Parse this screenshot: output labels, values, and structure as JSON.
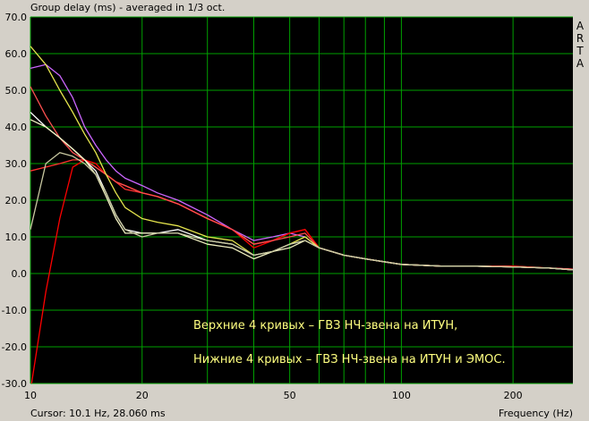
{
  "chart_data": {
    "type": "line",
    "title": "Group delay (ms) - averaged in 1/3 oct.",
    "xlabel": "Frequency (Hz)",
    "ylabel": "",
    "x_scale": "log",
    "xlim": [
      10,
      290
    ],
    "ylim": [
      -30,
      70
    ],
    "y_ticks": [
      "70.0",
      "60.0",
      "50.0",
      "40.0",
      "30.0",
      "20.0",
      "10.0",
      "0.0",
      "-10.0",
      "-20.0",
      "-30.0"
    ],
    "x_ticks": [
      {
        "v": 10,
        "label": "10"
      },
      {
        "v": 20,
        "label": "20"
      },
      {
        "v": 50,
        "label": "50"
      },
      {
        "v": 100,
        "label": "100"
      },
      {
        "v": 200,
        "label": "200"
      }
    ],
    "grid": true,
    "annotations": [
      "Верхние 4 кривых – ГВЗ НЧ-звена на ИТУН,",
      "Нижние 4 кривых – ГВЗ НЧ-звена на ИТУН и ЭМОС."
    ],
    "series": [
      {
        "color": "#cc66ff",
        "points": [
          [
            10,
            56
          ],
          [
            11,
            57
          ],
          [
            12,
            54
          ],
          [
            13,
            48
          ],
          [
            14,
            40
          ],
          [
            15,
            35
          ],
          [
            16,
            31
          ],
          [
            17,
            28
          ],
          [
            18,
            26
          ],
          [
            20,
            24
          ],
          [
            22,
            22
          ],
          [
            25,
            20
          ],
          [
            30,
            16
          ],
          [
            35,
            12
          ],
          [
            40,
            9
          ],
          [
            45,
            10
          ],
          [
            50,
            11
          ],
          [
            55,
            10
          ],
          [
            60,
            7
          ],
          [
            70,
            5
          ],
          [
            80,
            4
          ],
          [
            100,
            2.5
          ],
          [
            130,
            2
          ],
          [
            160,
            2
          ],
          [
            200,
            1.8
          ],
          [
            250,
            1.5
          ],
          [
            290,
            1.2
          ]
        ]
      },
      {
        "color": "#ff3030",
        "points": [
          [
            10,
            28
          ],
          [
            12,
            30
          ],
          [
            13,
            31
          ],
          [
            14,
            31
          ],
          [
            15,
            29
          ],
          [
            16,
            27
          ],
          [
            17,
            25
          ],
          [
            18,
            23
          ],
          [
            20,
            22
          ],
          [
            22,
            21
          ],
          [
            25,
            19
          ],
          [
            30,
            15
          ],
          [
            35,
            12
          ],
          [
            40,
            8
          ],
          [
            45,
            9
          ],
          [
            50,
            11
          ],
          [
            55,
            12
          ],
          [
            60,
            7
          ],
          [
            70,
            5
          ],
          [
            80,
            4
          ],
          [
            100,
            2.5
          ],
          [
            130,
            2
          ],
          [
            160,
            2
          ],
          [
            200,
            2
          ],
          [
            250,
            1.5
          ],
          [
            290,
            1.2
          ]
        ]
      },
      {
        "color": "#ff0000",
        "points": [
          [
            10,
            -32
          ],
          [
            11,
            -5
          ],
          [
            12,
            15
          ],
          [
            13,
            29
          ],
          [
            14,
            31
          ],
          [
            15,
            30
          ],
          [
            16,
            27
          ],
          [
            17,
            25
          ],
          [
            18,
            24
          ],
          [
            20,
            22
          ],
          [
            22,
            21
          ],
          [
            25,
            19
          ],
          [
            30,
            15
          ],
          [
            35,
            12
          ],
          [
            40,
            7
          ],
          [
            45,
            9
          ],
          [
            50,
            11
          ],
          [
            55,
            12
          ],
          [
            60,
            7
          ],
          [
            70,
            5
          ],
          [
            80,
            4
          ],
          [
            100,
            2.5
          ],
          [
            130,
            2
          ],
          [
            160,
            2
          ],
          [
            200,
            2
          ],
          [
            250,
            1.5
          ],
          [
            290,
            1
          ]
        ]
      },
      {
        "color": "#ff5050",
        "points": [
          [
            10,
            51
          ],
          [
            11,
            43
          ],
          [
            12,
            37
          ],
          [
            13,
            33
          ],
          [
            14,
            31
          ],
          [
            15,
            29
          ],
          [
            16,
            27
          ],
          [
            17,
            25
          ],
          [
            18,
            24
          ],
          [
            20,
            22
          ],
          [
            22,
            21
          ],
          [
            25,
            19
          ],
          [
            30,
            15
          ],
          [
            35,
            12
          ],
          [
            40,
            8
          ],
          [
            45,
            9
          ],
          [
            50,
            10
          ],
          [
            55,
            11
          ],
          [
            60,
            7
          ],
          [
            70,
            5
          ],
          [
            80,
            4
          ],
          [
            100,
            2.5
          ],
          [
            130,
            2
          ],
          [
            160,
            2
          ],
          [
            200,
            1.8
          ],
          [
            250,
            1.5
          ],
          [
            290,
            1.2
          ]
        ]
      },
      {
        "color": "#e6e64d",
        "points": [
          [
            10,
            62
          ],
          [
            11,
            57
          ],
          [
            12,
            50
          ],
          [
            13,
            44
          ],
          [
            14,
            38
          ],
          [
            15,
            33
          ],
          [
            16,
            27
          ],
          [
            17,
            22
          ],
          [
            18,
            18
          ],
          [
            20,
            15
          ],
          [
            22,
            14
          ],
          [
            25,
            13
          ],
          [
            30,
            10
          ],
          [
            35,
            9
          ],
          [
            40,
            5
          ],
          [
            45,
            6
          ],
          [
            50,
            8
          ],
          [
            55,
            10
          ],
          [
            60,
            7
          ],
          [
            70,
            5
          ],
          [
            80,
            4
          ],
          [
            100,
            2.5
          ],
          [
            130,
            2
          ],
          [
            160,
            2
          ],
          [
            200,
            1.8
          ],
          [
            250,
            1.5
          ],
          [
            290,
            1
          ]
        ]
      },
      {
        "color": "#ffffff",
        "points": [
          [
            10,
            44
          ],
          [
            11,
            40
          ],
          [
            12,
            37
          ],
          [
            13,
            34
          ],
          [
            14,
            31
          ],
          [
            15,
            28
          ],
          [
            16,
            22
          ],
          [
            17,
            16
          ],
          [
            18,
            12
          ],
          [
            20,
            11
          ],
          [
            22,
            11
          ],
          [
            25,
            12
          ],
          [
            30,
            9
          ],
          [
            35,
            8
          ],
          [
            40,
            5
          ],
          [
            45,
            6
          ],
          [
            50,
            8
          ],
          [
            55,
            9
          ],
          [
            60,
            7
          ],
          [
            70,
            5
          ],
          [
            80,
            4
          ],
          [
            100,
            2.5
          ],
          [
            130,
            2
          ],
          [
            160,
            2
          ],
          [
            200,
            1.8
          ],
          [
            250,
            1.5
          ],
          [
            290,
            1
          ]
        ]
      },
      {
        "color": "#f0f0c0",
        "points": [
          [
            10,
            42
          ],
          [
            11,
            40
          ],
          [
            12,
            37
          ],
          [
            13,
            34
          ],
          [
            14,
            31
          ],
          [
            15,
            27
          ],
          [
            16,
            21
          ],
          [
            17,
            15
          ],
          [
            18,
            11
          ],
          [
            20,
            11
          ],
          [
            22,
            11
          ],
          [
            25,
            11
          ],
          [
            30,
            8
          ],
          [
            35,
            7
          ],
          [
            40,
            4
          ],
          [
            45,
            6
          ],
          [
            50,
            7
          ],
          [
            55,
            9
          ],
          [
            60,
            7
          ],
          [
            70,
            5
          ],
          [
            80,
            4
          ],
          [
            100,
            2.5
          ],
          [
            130,
            2
          ],
          [
            160,
            2
          ],
          [
            200,
            1.8
          ],
          [
            250,
            1.5
          ],
          [
            290,
            1
          ]
        ]
      },
      {
        "color": "#c8c8a0",
        "points": [
          [
            10,
            12
          ],
          [
            11,
            30
          ],
          [
            12,
            33
          ],
          [
            13,
            32
          ],
          [
            14,
            30
          ],
          [
            15,
            27
          ],
          [
            16,
            22
          ],
          [
            17,
            16
          ],
          [
            18,
            12
          ],
          [
            20,
            10
          ],
          [
            22,
            11
          ],
          [
            25,
            11
          ],
          [
            30,
            9
          ],
          [
            35,
            8
          ],
          [
            40,
            5
          ],
          [
            45,
            6
          ],
          [
            50,
            8
          ],
          [
            55,
            9
          ],
          [
            60,
            7
          ],
          [
            70,
            5
          ],
          [
            80,
            4
          ],
          [
            100,
            2.5
          ],
          [
            130,
            2
          ],
          [
            160,
            2
          ],
          [
            200,
            1.8
          ],
          [
            250,
            1.5
          ],
          [
            290,
            1
          ]
        ]
      }
    ]
  },
  "cursor_readout": "Cursor: 10.1 Hz, 28.060 ms",
  "brand_letters": [
    "A",
    "R",
    "T",
    "A"
  ],
  "colors": {
    "background": "#000000",
    "grid": "#00a000",
    "annotation": "#ffff80",
    "window": "#d4d0c8"
  }
}
